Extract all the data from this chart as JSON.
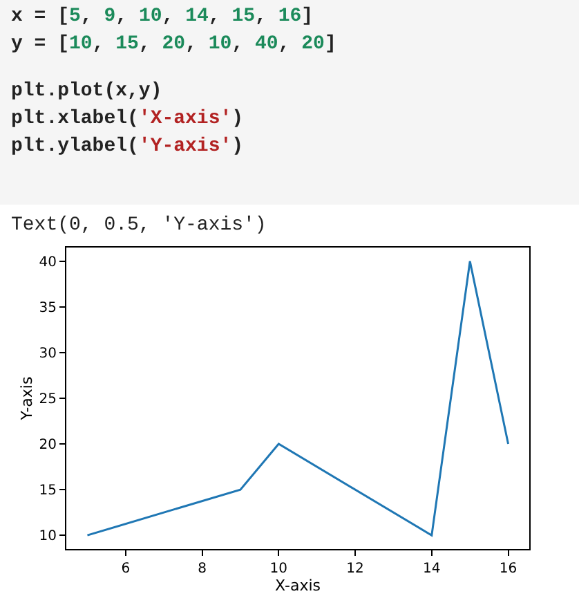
{
  "chart_data": {
    "type": "line",
    "xlabel": "X-axis",
    "ylabel": "Y-axis",
    "x": [
      5,
      9,
      10,
      14,
      15,
      16
    ],
    "series": [
      {
        "color": "#1f77b4",
        "values": [
          10,
          15,
          20,
          10,
          40,
          20
        ]
      }
    ],
    "xlim": [
      4.45,
      16.55
    ],
    "xticks": [
      6,
      8,
      10,
      12,
      14,
      16
    ],
    "ylim": [
      8.5,
      41.5
    ],
    "yticks": [
      10,
      15,
      20,
      25,
      30,
      35,
      40
    ],
    "grid": false,
    "marker": "none",
    "line_style": "solid",
    "annotations": [
      "x = [5, 9, 10, 14, 15, 16]",
      "y = [10, 15, 20, 10, 40, 20]",
      "plt.plot(x,y)",
      "plt.xlabel('X-axis')",
      "plt.ylabel('Y-axis')",
      "Text(0, 0.5, 'Y-axis')"
    ]
  }
}
